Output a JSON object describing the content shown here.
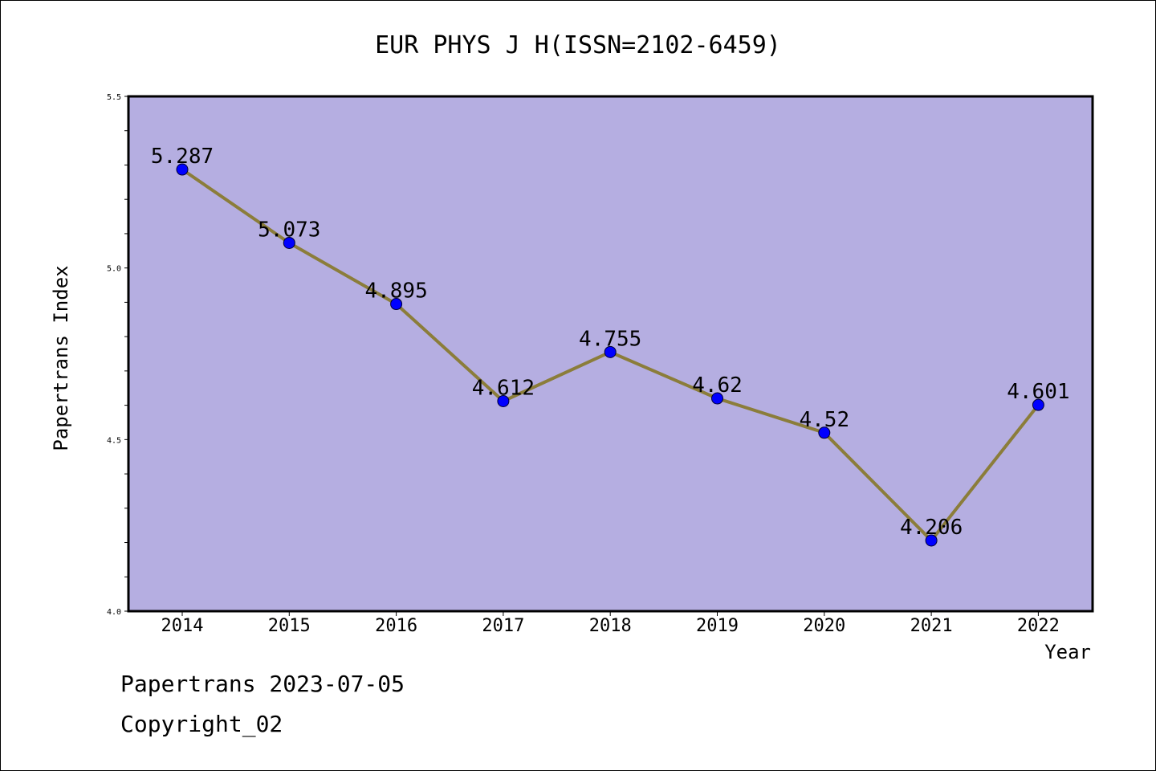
{
  "chart_data": {
    "type": "line",
    "title": "EUR PHYS J H(ISSN=2102-6459)",
    "xlabel": "Year",
    "ylabel": "Papertrans Index",
    "categories": [
      "2014",
      "2015",
      "2016",
      "2017",
      "2018",
      "2019",
      "2020",
      "2021",
      "2022"
    ],
    "series": [
      {
        "values": [
          5.287,
          5.073,
          4.895,
          4.612,
          4.755,
          4.62,
          4.52,
          4.206,
          4.601
        ]
      }
    ],
    "data_labels": [
      "5.287",
      "5.073",
      "4.895",
      "4.612",
      "4.755",
      "4.62",
      "4.52",
      "4.206",
      "4.601"
    ],
    "ylim": [
      4.0,
      5.5
    ],
    "y_ticks": [
      "4.0",
      "4.5",
      "5.0",
      "5.5"
    ],
    "grid": false,
    "colors": {
      "plot_background": "#b5aee1",
      "line": "#8b7d3a",
      "marker": "#0000ff"
    }
  },
  "footer": {
    "date_line": "Papertrans 2023-07-05",
    "copyright_line": "Copyright_02"
  }
}
